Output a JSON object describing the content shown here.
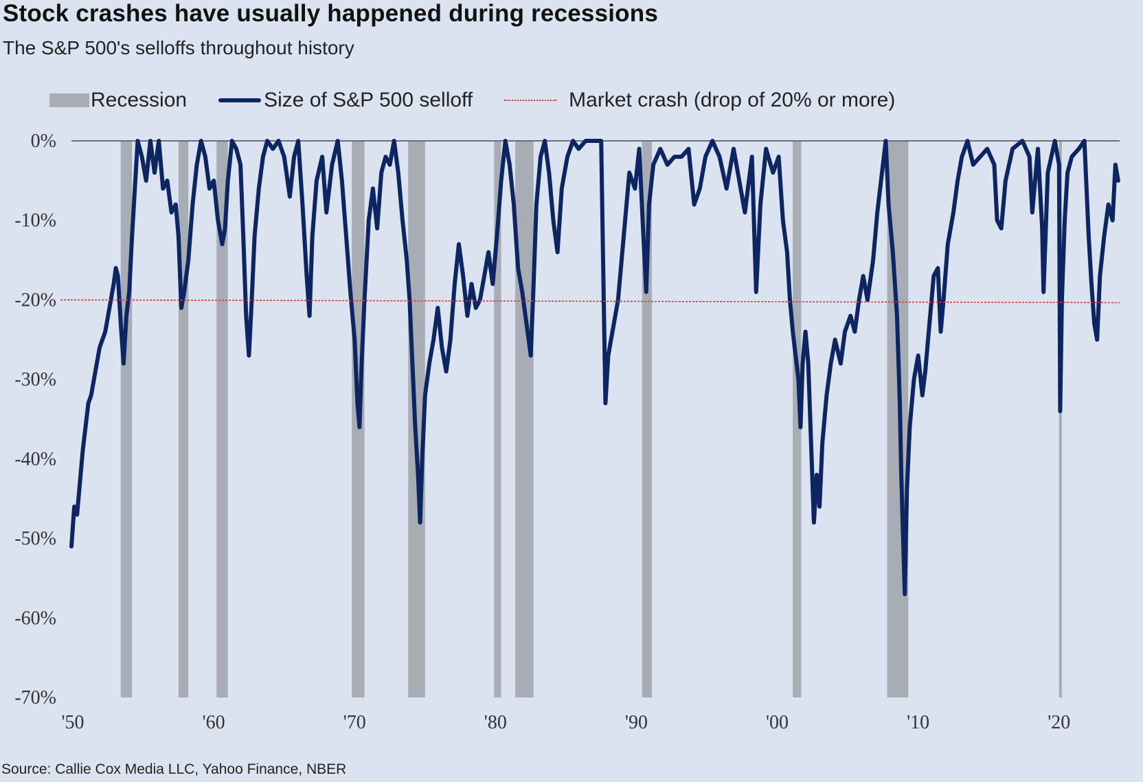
{
  "chart_data": {
    "type": "line",
    "title": "Stock crashes have usually happened during recessions",
    "subtitle": "The S&P 500's selloffs throughout history",
    "source": "Source: Callie Cox Media LLC, Yahoo Finance, NBER",
    "legend": {
      "placement": "top",
      "recession_label": "Recession",
      "series_label": "Size of S&P 500 selloff",
      "crash_label": "Market crash (drop of 20% or more)"
    },
    "ylim": [
      -70,
      0
    ],
    "xlim": [
      1950,
      2024.4
    ],
    "y_ticks": [
      0,
      -10,
      -20,
      -30,
      -40,
      -50,
      -60,
      -70
    ],
    "y_tick_labels": [
      "0%",
      "-10%",
      "-20%",
      "-30%",
      "-40%",
      "-50%",
      "-60%",
      "-70%"
    ],
    "x_ticks": [
      1950,
      1960,
      1970,
      1980,
      1990,
      2000,
      2010,
      2020
    ],
    "x_tick_labels": [
      "'50",
      "'60",
      "'70",
      "'80",
      "'90",
      "'00",
      "'10",
      "'20"
    ],
    "crash_threshold": -20,
    "recessions": [
      [
        1953.5,
        1954.3
      ],
      [
        1957.6,
        1958.3
      ],
      [
        1960.3,
        1961.1
      ],
      [
        1969.9,
        1970.8
      ],
      [
        1973.9,
        1975.1
      ],
      [
        1980.0,
        1980.5
      ],
      [
        1981.5,
        1982.8
      ],
      [
        1990.5,
        1991.2
      ],
      [
        2001.2,
        2001.8
      ],
      [
        2007.9,
        2009.4
      ],
      [
        2020.1,
        2020.3
      ]
    ],
    "series": [
      {
        "name": "Size of S&P 500 selloff",
        "color": "#0d2560",
        "points": [
          [
            1950.0,
            -51
          ],
          [
            1950.2,
            -46
          ],
          [
            1950.4,
            -47
          ],
          [
            1950.6,
            -43
          ],
          [
            1950.8,
            -39
          ],
          [
            1951.0,
            -36
          ],
          [
            1951.2,
            -33
          ],
          [
            1951.4,
            -32
          ],
          [
            1951.6,
            -30
          ],
          [
            1951.8,
            -28
          ],
          [
            1952.0,
            -26
          ],
          [
            1952.2,
            -25
          ],
          [
            1952.4,
            -24
          ],
          [
            1952.6,
            -22
          ],
          [
            1952.8,
            -20
          ],
          [
            1953.0,
            -18
          ],
          [
            1953.15,
            -16
          ],
          [
            1953.3,
            -17
          ],
          [
            1953.5,
            -23
          ],
          [
            1953.7,
            -28
          ],
          [
            1953.9,
            -22
          ],
          [
            1954.1,
            -19
          ],
          [
            1954.3,
            -12
          ],
          [
            1954.5,
            -6
          ],
          [
            1954.7,
            0
          ],
          [
            1955.0,
            -2
          ],
          [
            1955.3,
            -5
          ],
          [
            1955.6,
            0
          ],
          [
            1955.9,
            -4
          ],
          [
            1956.2,
            0
          ],
          [
            1956.5,
            -6
          ],
          [
            1956.8,
            -5
          ],
          [
            1957.1,
            -9
          ],
          [
            1957.4,
            -8
          ],
          [
            1957.6,
            -12
          ],
          [
            1957.8,
            -21
          ],
          [
            1958.0,
            -19
          ],
          [
            1958.3,
            -15
          ],
          [
            1958.6,
            -8
          ],
          [
            1958.9,
            -3
          ],
          [
            1959.2,
            0
          ],
          [
            1959.5,
            -2
          ],
          [
            1959.8,
            -6
          ],
          [
            1960.1,
            -5
          ],
          [
            1960.4,
            -10
          ],
          [
            1960.7,
            -13
          ],
          [
            1960.9,
            -11
          ],
          [
            1961.1,
            -5
          ],
          [
            1961.4,
            0
          ],
          [
            1961.7,
            -1
          ],
          [
            1962.0,
            -3
          ],
          [
            1962.2,
            -12
          ],
          [
            1962.4,
            -22
          ],
          [
            1962.6,
            -27
          ],
          [
            1962.8,
            -20
          ],
          [
            1963.0,
            -12
          ],
          [
            1963.3,
            -6
          ],
          [
            1963.6,
            -2
          ],
          [
            1963.9,
            0
          ],
          [
            1964.3,
            -1
          ],
          [
            1964.7,
            0
          ],
          [
            1965.1,
            -2
          ],
          [
            1965.5,
            -7
          ],
          [
            1965.8,
            -2
          ],
          [
            1966.1,
            0
          ],
          [
            1966.4,
            -8
          ],
          [
            1966.7,
            -17
          ],
          [
            1966.9,
            -22
          ],
          [
            1967.1,
            -12
          ],
          [
            1967.4,
            -5
          ],
          [
            1967.8,
            -2
          ],
          [
            1968.1,
            -9
          ],
          [
            1968.5,
            -3
          ],
          [
            1968.9,
            0
          ],
          [
            1969.2,
            -5
          ],
          [
            1969.5,
            -12
          ],
          [
            1969.8,
            -19
          ],
          [
            1970.1,
            -25
          ],
          [
            1970.3,
            -33
          ],
          [
            1970.45,
            -36
          ],
          [
            1970.6,
            -28
          ],
          [
            1970.8,
            -20
          ],
          [
            1971.1,
            -10
          ],
          [
            1971.4,
            -6
          ],
          [
            1971.7,
            -11
          ],
          [
            1972.0,
            -4
          ],
          [
            1972.3,
            -2
          ],
          [
            1972.6,
            -3
          ],
          [
            1972.9,
            0
          ],
          [
            1973.2,
            -4
          ],
          [
            1973.5,
            -10
          ],
          [
            1973.8,
            -15
          ],
          [
            1974.0,
            -20
          ],
          [
            1974.2,
            -28
          ],
          [
            1974.4,
            -36
          ],
          [
            1974.6,
            -42
          ],
          [
            1974.75,
            -48
          ],
          [
            1974.9,
            -40
          ],
          [
            1975.1,
            -32
          ],
          [
            1975.4,
            -28
          ],
          [
            1975.7,
            -25
          ],
          [
            1976.0,
            -21
          ],
          [
            1976.3,
            -26
          ],
          [
            1976.6,
            -29
          ],
          [
            1976.9,
            -25
          ],
          [
            1977.2,
            -18
          ],
          [
            1977.5,
            -13
          ],
          [
            1977.8,
            -17
          ],
          [
            1978.1,
            -22
          ],
          [
            1978.4,
            -18
          ],
          [
            1978.7,
            -21
          ],
          [
            1979.0,
            -20
          ],
          [
            1979.3,
            -17
          ],
          [
            1979.6,
            -14
          ],
          [
            1979.9,
            -18
          ],
          [
            1980.2,
            -12
          ],
          [
            1980.5,
            -5
          ],
          [
            1980.8,
            0
          ],
          [
            1981.1,
            -3
          ],
          [
            1981.4,
            -8
          ],
          [
            1981.7,
            -16
          ],
          [
            1982.0,
            -19
          ],
          [
            1982.3,
            -23
          ],
          [
            1982.6,
            -27
          ],
          [
            1982.8,
            -18
          ],
          [
            1983.0,
            -8
          ],
          [
            1983.3,
            -2
          ],
          [
            1983.6,
            0
          ],
          [
            1983.9,
            -4
          ],
          [
            1984.2,
            -10
          ],
          [
            1984.5,
            -14
          ],
          [
            1984.8,
            -6
          ],
          [
            1985.2,
            -2
          ],
          [
            1985.6,
            0
          ],
          [
            1986.0,
            -1
          ],
          [
            1986.5,
            0
          ],
          [
            1987.0,
            0
          ],
          [
            1987.6,
            0
          ],
          [
            1987.8,
            -22
          ],
          [
            1987.9,
            -33
          ],
          [
            1988.1,
            -27
          ],
          [
            1988.4,
            -24
          ],
          [
            1988.8,
            -20
          ],
          [
            1989.2,
            -12
          ],
          [
            1989.6,
            -4
          ],
          [
            1990.0,
            -6
          ],
          [
            1990.3,
            -1
          ],
          [
            1990.6,
            -12
          ],
          [
            1990.8,
            -19
          ],
          [
            1991.0,
            -8
          ],
          [
            1991.3,
            -3
          ],
          [
            1991.8,
            -1
          ],
          [
            1992.3,
            -3
          ],
          [
            1992.8,
            -2
          ],
          [
            1993.3,
            -2
          ],
          [
            1993.8,
            -1
          ],
          [
            1994.2,
            -8
          ],
          [
            1994.6,
            -6
          ],
          [
            1995.0,
            -2
          ],
          [
            1995.5,
            0
          ],
          [
            1996.0,
            -2
          ],
          [
            1996.5,
            -6
          ],
          [
            1997.0,
            -1
          ],
          [
            1997.8,
            -9
          ],
          [
            1998.3,
            -2
          ],
          [
            1998.6,
            -19
          ],
          [
            1998.9,
            -8
          ],
          [
            1999.3,
            -1
          ],
          [
            1999.8,
            -4
          ],
          [
            2000.2,
            -2
          ],
          [
            2000.5,
            -10
          ],
          [
            2000.8,
            -14
          ],
          [
            2001.0,
            -20
          ],
          [
            2001.2,
            -24
          ],
          [
            2001.4,
            -27
          ],
          [
            2001.6,
            -30
          ],
          [
            2001.75,
            -36
          ],
          [
            2001.9,
            -28
          ],
          [
            2002.1,
            -24
          ],
          [
            2002.3,
            -28
          ],
          [
            2002.5,
            -38
          ],
          [
            2002.7,
            -48
          ],
          [
            2002.9,
            -42
          ],
          [
            2003.1,
            -46
          ],
          [
            2003.3,
            -38
          ],
          [
            2003.6,
            -32
          ],
          [
            2003.9,
            -28
          ],
          [
            2004.2,
            -25
          ],
          [
            2004.6,
            -28
          ],
          [
            2004.9,
            -24
          ],
          [
            2005.3,
            -22
          ],
          [
            2005.6,
            -24
          ],
          [
            2005.9,
            -20
          ],
          [
            2006.2,
            -17
          ],
          [
            2006.5,
            -20
          ],
          [
            2006.9,
            -15
          ],
          [
            2007.2,
            -9
          ],
          [
            2007.6,
            -3
          ],
          [
            2007.8,
            0
          ],
          [
            2008.0,
            -8
          ],
          [
            2008.3,
            -14
          ],
          [
            2008.6,
            -22
          ],
          [
            2008.8,
            -33
          ],
          [
            2008.9,
            -42
          ],
          [
            2009.0,
            -48
          ],
          [
            2009.15,
            -57
          ],
          [
            2009.3,
            -44
          ],
          [
            2009.5,
            -36
          ],
          [
            2009.8,
            -30
          ],
          [
            2010.1,
            -27
          ],
          [
            2010.4,
            -32
          ],
          [
            2010.6,
            -29
          ],
          [
            2010.9,
            -23
          ],
          [
            2011.2,
            -17
          ],
          [
            2011.5,
            -16
          ],
          [
            2011.7,
            -24
          ],
          [
            2011.9,
            -20
          ],
          [
            2012.2,
            -13
          ],
          [
            2012.6,
            -9
          ],
          [
            2012.9,
            -5
          ],
          [
            2013.2,
            -2
          ],
          [
            2013.6,
            0
          ],
          [
            2014.0,
            -3
          ],
          [
            2014.5,
            -2
          ],
          [
            2015.0,
            -1
          ],
          [
            2015.5,
            -3
          ],
          [
            2015.7,
            -10
          ],
          [
            2016.0,
            -11
          ],
          [
            2016.3,
            -5
          ],
          [
            2016.8,
            -1
          ],
          [
            2017.5,
            0
          ],
          [
            2018.0,
            -2
          ],
          [
            2018.2,
            -9
          ],
          [
            2018.6,
            -1
          ],
          [
            2018.9,
            -11
          ],
          [
            2019.0,
            -19
          ],
          [
            2019.3,
            -4
          ],
          [
            2019.8,
            0
          ],
          [
            2020.1,
            -3
          ],
          [
            2020.18,
            -34
          ],
          [
            2020.3,
            -20
          ],
          [
            2020.5,
            -10
          ],
          [
            2020.7,
            -4
          ],
          [
            2021.0,
            -2
          ],
          [
            2021.5,
            -1
          ],
          [
            2021.9,
            0
          ],
          [
            2022.2,
            -12
          ],
          [
            2022.4,
            -18
          ],
          [
            2022.6,
            -23
          ],
          [
            2022.8,
            -25
          ],
          [
            2023.0,
            -17
          ],
          [
            2023.3,
            -12
          ],
          [
            2023.6,
            -8
          ],
          [
            2023.9,
            -10
          ],
          [
            2024.1,
            -3
          ],
          [
            2024.3,
            -5
          ]
        ]
      }
    ]
  }
}
